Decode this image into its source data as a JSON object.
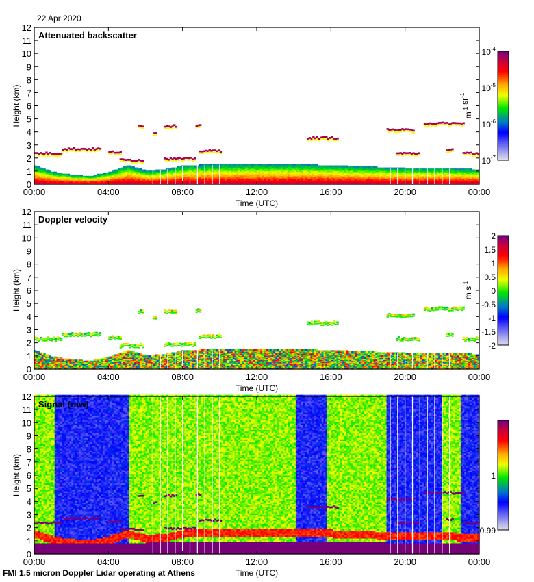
{
  "date_label": "22 Apr 2020",
  "footer": "FMI 1.5 micron Doppler Lidar operating at Athens",
  "chart_data": [
    {
      "type": "heatmap",
      "title": "Attenuated backscatter",
      "xlabel": "Time (UTC)",
      "ylabel": "Height (km)",
      "xticks": [
        "00:00",
        "04:00",
        "08:00",
        "12:00",
        "16:00",
        "20:00",
        "00:00"
      ],
      "xlim_hours": [
        0,
        24
      ],
      "yticks": [
        0,
        1,
        2,
        3,
        4,
        5,
        6,
        7,
        8,
        9,
        10,
        11,
        12
      ],
      "ylim": [
        0,
        12
      ],
      "colorbar": {
        "label": "m-1 sr-1",
        "scale": "log",
        "range": [
          1e-07,
          0.0001
        ],
        "ticks": [
          "10-7",
          "10-6",
          "10-5",
          "10-4"
        ]
      },
      "features": {
        "boundary_layer_top_km": [
          [
            0,
            1.4
          ],
          [
            1,
            0.9
          ],
          [
            2,
            0.7
          ],
          [
            3,
            0.6
          ],
          [
            4,
            0.9
          ],
          [
            5,
            1.4
          ],
          [
            6,
            1.0
          ],
          [
            7,
            1.1
          ],
          [
            8,
            1.4
          ],
          [
            10,
            1.5
          ],
          [
            12,
            1.5
          ],
          [
            14,
            1.5
          ],
          [
            16,
            1.4
          ],
          [
            18,
            1.3
          ],
          [
            20,
            1.2
          ],
          [
            22,
            1.2
          ],
          [
            24,
            1.1
          ]
        ],
        "cloud_layers": [
          {
            "t0": 0.0,
            "t1": 1.5,
            "h": 2.3
          },
          {
            "t0": 1.5,
            "t1": 3.6,
            "h": 2.65
          },
          {
            "t0": 4.0,
            "t1": 4.6,
            "h": 2.4
          },
          {
            "t0": 4.6,
            "t1": 5.8,
            "h": 1.8
          },
          {
            "t0": 5.6,
            "t1": 5.8,
            "h": 4.4
          },
          {
            "t0": 6.4,
            "t1": 6.6,
            "h": 3.9
          },
          {
            "t0": 7.0,
            "t1": 7.6,
            "h": 4.4
          },
          {
            "t0": 8.7,
            "t1": 8.9,
            "h": 4.5
          },
          {
            "t0": 7.0,
            "t1": 8.6,
            "h": 1.9
          },
          {
            "t0": 8.9,
            "t1": 10.0,
            "h": 2.5
          },
          {
            "t0": 14.7,
            "t1": 16.4,
            "h": 3.5
          },
          {
            "t0": 19.0,
            "t1": 20.5,
            "h": 4.1
          },
          {
            "t0": 21.0,
            "t1": 23.2,
            "h": 4.6
          },
          {
            "t0": 19.5,
            "t1": 20.8,
            "h": 2.3
          },
          {
            "t0": 22.2,
            "t1": 22.6,
            "h": 2.6
          },
          {
            "t0": 23.1,
            "t1": 24.0,
            "h": 2.3
          }
        ],
        "missing_profile_hours": [
          6.4,
          6.8,
          7.2,
          7.6,
          8.0,
          8.4,
          8.8,
          9.2,
          9.6,
          10.0,
          19.2,
          19.6,
          20.0,
          20.4,
          20.8,
          21.2,
          21.6,
          22.0,
          22.4
        ]
      }
    },
    {
      "type": "heatmap",
      "title": "Doppler velocity",
      "xlabel": "Time (UTC)",
      "ylabel": "Height (km)",
      "xticks": [
        "00:00",
        "04:00",
        "08:00",
        "12:00",
        "16:00",
        "20:00",
        "00:00"
      ],
      "xlim_hours": [
        0,
        24
      ],
      "yticks": [
        0,
        1,
        2,
        3,
        4,
        5,
        6,
        7,
        8,
        9,
        10,
        11,
        12
      ],
      "ylim": [
        0,
        12
      ],
      "colorbar": {
        "label": "m s-1",
        "scale": "linear",
        "range": [
          -2,
          2
        ],
        "ticks": [
          "-2",
          "-1.5",
          "-1",
          "-0.5",
          "0",
          "0.5",
          "1",
          "1.5",
          "2"
        ]
      }
    },
    {
      "type": "heatmap",
      "title": "Signal (raw)",
      "xlabel": "Time (UTC)",
      "ylabel": "Height (km)",
      "xticks": [
        "00:00",
        "04:00",
        "08:00",
        "12:00",
        "16:00",
        "20:00",
        "00:00"
      ],
      "xlim_hours": [
        0,
        24
      ],
      "yticks": [
        0,
        1,
        2,
        3,
        4,
        5,
        6,
        7,
        8,
        9,
        10,
        11,
        12
      ],
      "ylim": [
        0,
        12
      ],
      "colorbar": {
        "label": "",
        "scale": "linear",
        "range": [
          0.99,
          1.01
        ],
        "ticks": [
          "0.99",
          "1"
        ]
      },
      "features": {
        "low_signal_periods_hours": [
          [
            1.0,
            5.0
          ],
          [
            14.0,
            15.7
          ],
          [
            19.0,
            20.5
          ],
          [
            20.5,
            22.0
          ],
          [
            23.0,
            24.0
          ]
        ]
      }
    }
  ]
}
